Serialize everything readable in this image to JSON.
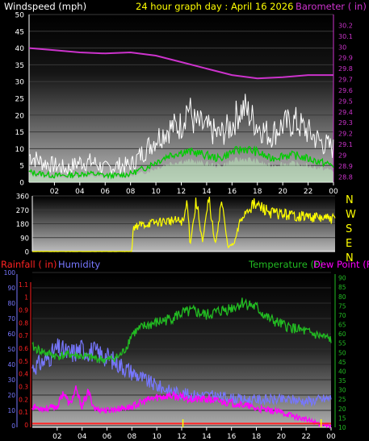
{
  "header": {
    "left": "Windspeed (mph)",
    "center": "24 hour graph day : April 16 2026",
    "right": "Barometer ( in)"
  },
  "colors": {
    "white": "#ffffff",
    "windGust": "#ffffff",
    "windAvg": "#00cc00",
    "windFill": "#b8e6b8",
    "barometer": "#cc33cc",
    "direction": "#ffff00",
    "humidity": "#7777ff",
    "temperature": "#22bb22",
    "dewpoint": "#ff00ff",
    "rainfall": "#ff2222",
    "tickYellow": "#ffff00"
  },
  "chart_data": [
    {
      "type": "line",
      "title": "Windspeed (mph)",
      "x_ticks": [
        "02",
        "04",
        "06",
        "08",
        "10",
        "12",
        "14",
        "16",
        "18",
        "20",
        "22",
        "00"
      ],
      "y_left_ticks": [
        0,
        5,
        10,
        15,
        20,
        25,
        30,
        35,
        40,
        45,
        50
      ],
      "y_left_lim": [
        0,
        50
      ],
      "y_right_label": "Barometer ( in)",
      "y_right_ticks": [
        "28.8",
        "28.9",
        "29",
        "29.1",
        "29.2",
        "29.3",
        "29.4",
        "29.5",
        "29.6",
        "29.7",
        "29.8",
        "29.9",
        "30",
        "30.1",
        "30.2"
      ],
      "y_right_lim": [
        28.75,
        30.3
      ],
      "series": [
        {
          "name": "Barometer ( in)",
          "axis": "right",
          "x": [
            0,
            2,
            4,
            6,
            8,
            10,
            12,
            14,
            16,
            18,
            20,
            22,
            24
          ],
          "values": [
            29.99,
            29.97,
            29.95,
            29.94,
            29.95,
            29.92,
            29.86,
            29.8,
            29.74,
            29.71,
            29.72,
            29.74,
            29.74
          ]
        },
        {
          "name": "Windspeed (mph)",
          "axis": "left",
          "kind": "gust",
          "x": [
            0,
            1,
            2,
            3,
            4,
            5,
            6,
            7,
            8,
            9,
            10,
            11,
            12,
            12.5,
            13,
            14,
            15,
            16,
            16.5,
            17,
            18,
            19,
            20,
            21,
            22,
            23,
            24
          ],
          "values": [
            8,
            6,
            5,
            4,
            6,
            6,
            4,
            5,
            5,
            9,
            13,
            16,
            17,
            23,
            18,
            16,
            14,
            17,
            21,
            22,
            17,
            14,
            17,
            18,
            15,
            12,
            10
          ]
        },
        {
          "name": "Wind avg",
          "axis": "left",
          "kind": "avg",
          "x": [
            0,
            1,
            2,
            3,
            4,
            5,
            6,
            7,
            8,
            9,
            10,
            11,
            12,
            13,
            14,
            15,
            16,
            17,
            18,
            19,
            20,
            21,
            22,
            23,
            24
          ],
          "values": [
            3,
            2.5,
            2,
            2,
            2.5,
            2.5,
            2,
            2,
            2.5,
            4,
            6,
            8,
            9,
            9,
            8,
            7,
            9,
            10,
            9,
            7,
            8,
            8,
            7,
            6,
            5
          ]
        }
      ]
    },
    {
      "type": "scatter",
      "title": "Wind direction",
      "x_ticks": [
        "02",
        "04",
        "06",
        "08",
        "10",
        "12",
        "14",
        "16",
        "18",
        "20",
        "22",
        "00"
      ],
      "y_ticks": [
        0,
        90,
        180,
        270,
        360
      ],
      "y_lim": [
        0,
        360
      ],
      "compass_labels": [
        "N",
        "W",
        "S",
        "E",
        "N"
      ],
      "series": [
        {
          "name": "Direction",
          "x": [
            0,
            7.9,
            8.0,
            8.5,
            10,
            11,
            12,
            12.3,
            12.5,
            13,
            13.5,
            14,
            14.5,
            15,
            15.5,
            16,
            16.5,
            17,
            17.5,
            18,
            19,
            20,
            21,
            22,
            23,
            24
          ],
          "values": [
            0,
            0,
            160,
            170,
            190,
            200,
            195,
            340,
            40,
            330,
            60,
            340,
            40,
            330,
            30,
            50,
            200,
            270,
            300,
            290,
            250,
            240,
            230,
            225,
            215,
            210
          ]
        }
      ]
    },
    {
      "type": "line",
      "x_ticks": [
        "02",
        "04",
        "06",
        "08",
        "10",
        "12",
        "14",
        "16",
        "18",
        "20",
        "22",
        "00"
      ],
      "axes_labels": {
        "rainfall": "Rainfall ( in)",
        "humidity": "Humidity",
        "temperature": "Temperature (F)",
        "dewpoint": "Dew Point (F)"
      },
      "y_rain_ticks": [
        "0",
        "0.1",
        "0.2",
        "0.3",
        "0.4",
        "0.5",
        "0.6",
        "0.7",
        "0.8",
        "0.9",
        "1",
        "1.1"
      ],
      "y_rain_lim": [
        0,
        1.2
      ],
      "y_humidity_ticks": [
        0,
        10,
        20,
        30,
        40,
        50,
        60,
        70,
        80,
        90,
        100
      ],
      "y_humidity_lim": [
        0,
        100
      ],
      "y_temp_ticks": [
        10,
        15,
        20,
        25,
        30,
        35,
        40,
        45,
        50,
        55,
        60,
        65,
        70,
        75,
        80,
        85,
        90
      ],
      "y_temp_lim": [
        10,
        92
      ],
      "series": [
        {
          "name": "Temperature (F)",
          "axis": "temp",
          "x": [
            0,
            1,
            2,
            3,
            4,
            5,
            6,
            7,
            7.5,
            8,
            9,
            10,
            11,
            12,
            13,
            14,
            15,
            16,
            17,
            18,
            19,
            20,
            21,
            22,
            23,
            24
          ],
          "values": [
            53,
            50,
            48,
            49,
            48,
            47,
            46,
            48,
            52,
            60,
            64,
            66,
            68,
            71,
            72,
            70,
            72,
            74,
            77,
            74,
            68,
            65,
            63,
            61,
            59,
            57
          ]
        },
        {
          "name": "Dew Point (F)",
          "axis": "temp",
          "x": [
            0,
            1,
            2,
            2.5,
            3,
            3.5,
            4,
            4.5,
            5,
            6,
            7,
            8,
            9,
            10,
            11,
            12,
            13,
            14,
            15,
            16,
            17,
            18,
            19,
            20,
            21,
            22,
            23,
            24
          ],
          "values": [
            21,
            20,
            21,
            29,
            22,
            30,
            21,
            29,
            20,
            19,
            20,
            21,
            24,
            26,
            27,
            26,
            25,
            25,
            24,
            23,
            22,
            20,
            19,
            18,
            16,
            14,
            12,
            11
          ]
        },
        {
          "name": "Humidity",
          "axis": "humidity",
          "x": [
            0,
            1,
            2,
            3,
            4,
            5,
            6,
            7,
            8,
            9,
            10,
            11,
            12,
            13,
            14,
            15,
            16,
            17,
            18,
            19,
            20,
            21,
            22,
            23,
            24
          ],
          "values": [
            38,
            42,
            50,
            47,
            50,
            48,
            45,
            40,
            35,
            30,
            26,
            23,
            21,
            20,
            20,
            19,
            18,
            17,
            17,
            17,
            17,
            17,
            16,
            17,
            18
          ]
        },
        {
          "name": "Rainfall ( in)",
          "axis": "rain",
          "x": [
            0,
            24
          ],
          "values": [
            0.01,
            0.01
          ]
        }
      ],
      "rain_ticks_x": [
        12.1,
        23.2
      ]
    }
  ]
}
